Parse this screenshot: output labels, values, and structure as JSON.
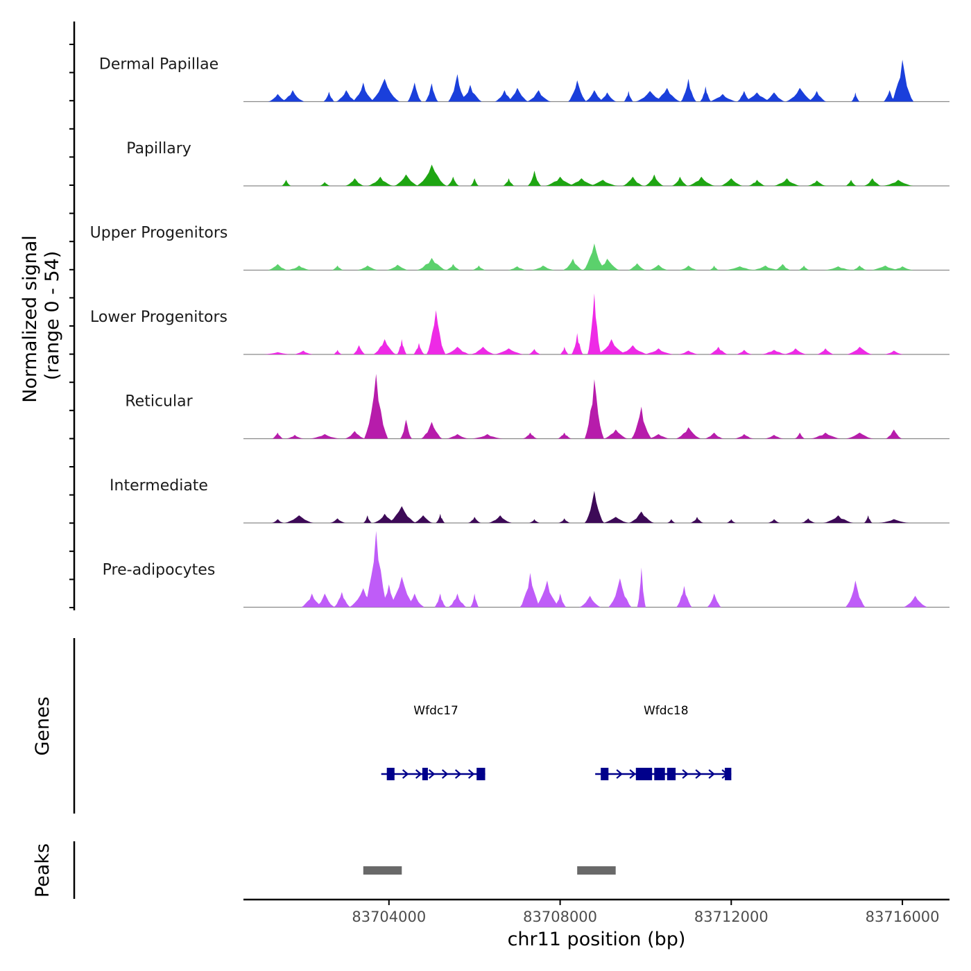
{
  "chart_data": {
    "type": "area",
    "ylabel": [
      "Normalized signal",
      "(range 0 - 54)"
    ],
    "ylim": [
      0,
      54
    ],
    "xlabel": "chr11 position (bp)",
    "xlim": [
      83700600,
      83717100
    ],
    "x_ticks": [
      83704000,
      83708000,
      83712000,
      83716000
    ],
    "x_tick_labels": [
      "83704000",
      "83708000",
      "83712000",
      "83716000"
    ],
    "tracks": [
      {
        "name": "Dermal Papillae",
        "color": "#1a3fdb",
        "peaks": [
          {
            "x": 83701400,
            "h": 0.1
          },
          {
            "x": 83701750,
            "h": 0.15
          },
          {
            "x": 83702600,
            "h": 0.13
          },
          {
            "x": 83703000,
            "h": 0.15
          },
          {
            "x": 83703400,
            "h": 0.25
          },
          {
            "x": 83703900,
            "h": 0.3
          },
          {
            "x": 83704600,
            "h": 0.25
          },
          {
            "x": 83705000,
            "h": 0.24
          },
          {
            "x": 83705600,
            "h": 0.36
          },
          {
            "x": 83705900,
            "h": 0.22
          },
          {
            "x": 83706700,
            "h": 0.15
          },
          {
            "x": 83707000,
            "h": 0.18
          },
          {
            "x": 83707500,
            "h": 0.15
          },
          {
            "x": 83708400,
            "h": 0.28
          },
          {
            "x": 83708800,
            "h": 0.15
          },
          {
            "x": 83709100,
            "h": 0.12
          },
          {
            "x": 83709600,
            "h": 0.14
          },
          {
            "x": 83710100,
            "h": 0.14
          },
          {
            "x": 83710500,
            "h": 0.18
          },
          {
            "x": 83711000,
            "h": 0.3
          },
          {
            "x": 83711400,
            "h": 0.2
          },
          {
            "x": 83711800,
            "h": 0.1
          },
          {
            "x": 83712300,
            "h": 0.14
          },
          {
            "x": 83712600,
            "h": 0.12
          },
          {
            "x": 83713000,
            "h": 0.12
          },
          {
            "x": 83713600,
            "h": 0.18
          },
          {
            "x": 83714000,
            "h": 0.14
          },
          {
            "x": 83714900,
            "h": 0.12
          },
          {
            "x": 83715700,
            "h": 0.15
          },
          {
            "x": 83716000,
            "h": 0.55
          }
        ]
      },
      {
        "name": "Papillary",
        "color": "#1ea512",
        "peaks": [
          {
            "x": 83701600,
            "h": 0.08
          },
          {
            "x": 83702500,
            "h": 0.05
          },
          {
            "x": 83703200,
            "h": 0.1
          },
          {
            "x": 83703800,
            "h": 0.12
          },
          {
            "x": 83704400,
            "h": 0.15
          },
          {
            "x": 83705000,
            "h": 0.28
          },
          {
            "x": 83705500,
            "h": 0.12
          },
          {
            "x": 83706000,
            "h": 0.1
          },
          {
            "x": 83706800,
            "h": 0.1
          },
          {
            "x": 83707400,
            "h": 0.2
          },
          {
            "x": 83708000,
            "h": 0.12
          },
          {
            "x": 83708500,
            "h": 0.1
          },
          {
            "x": 83709000,
            "h": 0.08
          },
          {
            "x": 83709700,
            "h": 0.12
          },
          {
            "x": 83710200,
            "h": 0.15
          },
          {
            "x": 83710800,
            "h": 0.12
          },
          {
            "x": 83711300,
            "h": 0.12
          },
          {
            "x": 83712000,
            "h": 0.1
          },
          {
            "x": 83712600,
            "h": 0.08
          },
          {
            "x": 83713300,
            "h": 0.1
          },
          {
            "x": 83714000,
            "h": 0.07
          },
          {
            "x": 83714800,
            "h": 0.08
          },
          {
            "x": 83715300,
            "h": 0.1
          },
          {
            "x": 83715900,
            "h": 0.08
          }
        ]
      },
      {
        "name": "Upper Progenitors",
        "color": "#5bd16c",
        "peaks": [
          {
            "x": 83701400,
            "h": 0.08
          },
          {
            "x": 83701900,
            "h": 0.06
          },
          {
            "x": 83702800,
            "h": 0.06
          },
          {
            "x": 83703500,
            "h": 0.06
          },
          {
            "x": 83704200,
            "h": 0.07
          },
          {
            "x": 83705000,
            "h": 0.16
          },
          {
            "x": 83705500,
            "h": 0.08
          },
          {
            "x": 83706100,
            "h": 0.06
          },
          {
            "x": 83707000,
            "h": 0.05
          },
          {
            "x": 83707600,
            "h": 0.06
          },
          {
            "x": 83708300,
            "h": 0.15
          },
          {
            "x": 83708800,
            "h": 0.35
          },
          {
            "x": 83709100,
            "h": 0.15
          },
          {
            "x": 83709800,
            "h": 0.09
          },
          {
            "x": 83710300,
            "h": 0.07
          },
          {
            "x": 83711000,
            "h": 0.06
          },
          {
            "x": 83711600,
            "h": 0.06
          },
          {
            "x": 83712200,
            "h": 0.05
          },
          {
            "x": 83712800,
            "h": 0.06
          },
          {
            "x": 83713200,
            "h": 0.08
          },
          {
            "x": 83713700,
            "h": 0.06
          },
          {
            "x": 83714500,
            "h": 0.05
          },
          {
            "x": 83715000,
            "h": 0.06
          },
          {
            "x": 83715600,
            "h": 0.06
          },
          {
            "x": 83716000,
            "h": 0.05
          }
        ]
      },
      {
        "name": "Lower Progenitors",
        "color": "#ee2ae6",
        "peaks": [
          {
            "x": 83701400,
            "h": 0.03
          },
          {
            "x": 83702000,
            "h": 0.05
          },
          {
            "x": 83702800,
            "h": 0.06
          },
          {
            "x": 83703300,
            "h": 0.12
          },
          {
            "x": 83703900,
            "h": 0.2
          },
          {
            "x": 83704300,
            "h": 0.2
          },
          {
            "x": 83704700,
            "h": 0.15
          },
          {
            "x": 83705100,
            "h": 0.58
          },
          {
            "x": 83705600,
            "h": 0.1
          },
          {
            "x": 83706200,
            "h": 0.1
          },
          {
            "x": 83706800,
            "h": 0.08
          },
          {
            "x": 83707400,
            "h": 0.07
          },
          {
            "x": 83708100,
            "h": 0.1
          },
          {
            "x": 83708400,
            "h": 0.28
          },
          {
            "x": 83708800,
            "h": 0.8
          },
          {
            "x": 83709200,
            "h": 0.2
          },
          {
            "x": 83709700,
            "h": 0.12
          },
          {
            "x": 83710300,
            "h": 0.08
          },
          {
            "x": 83711000,
            "h": 0.05
          },
          {
            "x": 83711700,
            "h": 0.1
          },
          {
            "x": 83712300,
            "h": 0.06
          },
          {
            "x": 83713000,
            "h": 0.06
          },
          {
            "x": 83713500,
            "h": 0.08
          },
          {
            "x": 83714200,
            "h": 0.08
          },
          {
            "x": 83715000,
            "h": 0.1
          },
          {
            "x": 83715800,
            "h": 0.05
          }
        ]
      },
      {
        "name": "Reticular",
        "color": "#b71cab",
        "peaks": [
          {
            "x": 83701400,
            "h": 0.08
          },
          {
            "x": 83701800,
            "h": 0.05
          },
          {
            "x": 83702500,
            "h": 0.06
          },
          {
            "x": 83703200,
            "h": 0.1
          },
          {
            "x": 83703700,
            "h": 0.85
          },
          {
            "x": 83704400,
            "h": 0.25
          },
          {
            "x": 83705000,
            "h": 0.22
          },
          {
            "x": 83705600,
            "h": 0.06
          },
          {
            "x": 83706300,
            "h": 0.06
          },
          {
            "x": 83707300,
            "h": 0.08
          },
          {
            "x": 83708100,
            "h": 0.08
          },
          {
            "x": 83708800,
            "h": 0.78
          },
          {
            "x": 83709300,
            "h": 0.12
          },
          {
            "x": 83709900,
            "h": 0.42
          },
          {
            "x": 83710300,
            "h": 0.06
          },
          {
            "x": 83711000,
            "h": 0.15
          },
          {
            "x": 83711600,
            "h": 0.08
          },
          {
            "x": 83712300,
            "h": 0.06
          },
          {
            "x": 83713000,
            "h": 0.05
          },
          {
            "x": 83713600,
            "h": 0.08
          },
          {
            "x": 83714200,
            "h": 0.08
          },
          {
            "x": 83715000,
            "h": 0.08
          },
          {
            "x": 83715800,
            "h": 0.12
          }
        ]
      },
      {
        "name": "Intermediate",
        "color": "#3d0a57",
        "peaks": [
          {
            "x": 83701400,
            "h": 0.05
          },
          {
            "x": 83701900,
            "h": 0.1
          },
          {
            "x": 83702800,
            "h": 0.06
          },
          {
            "x": 83703500,
            "h": 0.1
          },
          {
            "x": 83703900,
            "h": 0.12
          },
          {
            "x": 83704300,
            "h": 0.22
          },
          {
            "x": 83704800,
            "h": 0.1
          },
          {
            "x": 83705200,
            "h": 0.12
          },
          {
            "x": 83706000,
            "h": 0.08
          },
          {
            "x": 83706600,
            "h": 0.1
          },
          {
            "x": 83707400,
            "h": 0.05
          },
          {
            "x": 83708100,
            "h": 0.06
          },
          {
            "x": 83708800,
            "h": 0.42
          },
          {
            "x": 83709300,
            "h": 0.08
          },
          {
            "x": 83709900,
            "h": 0.15
          },
          {
            "x": 83710600,
            "h": 0.05
          },
          {
            "x": 83711200,
            "h": 0.08
          },
          {
            "x": 83712000,
            "h": 0.05
          },
          {
            "x": 83713000,
            "h": 0.05
          },
          {
            "x": 83713800,
            "h": 0.06
          },
          {
            "x": 83714500,
            "h": 0.1
          },
          {
            "x": 83715200,
            "h": 0.1
          },
          {
            "x": 83715800,
            "h": 0.05
          }
        ]
      },
      {
        "name": "Pre-adipocytes",
        "color": "#bf5cf8",
        "peaks": [
          {
            "x": 83702200,
            "h": 0.18
          },
          {
            "x": 83702500,
            "h": 0.18
          },
          {
            "x": 83702900,
            "h": 0.2
          },
          {
            "x": 83703400,
            "h": 0.25
          },
          {
            "x": 83703700,
            "h": 1.0
          },
          {
            "x": 83704000,
            "h": 0.3
          },
          {
            "x": 83704300,
            "h": 0.4
          },
          {
            "x": 83704600,
            "h": 0.18
          },
          {
            "x": 83705200,
            "h": 0.18
          },
          {
            "x": 83705600,
            "h": 0.18
          },
          {
            "x": 83706000,
            "h": 0.18
          },
          {
            "x": 83707300,
            "h": 0.45
          },
          {
            "x": 83707700,
            "h": 0.35
          },
          {
            "x": 83708000,
            "h": 0.18
          },
          {
            "x": 83708700,
            "h": 0.15
          },
          {
            "x": 83709400,
            "h": 0.38
          },
          {
            "x": 83709900,
            "h": 0.52
          },
          {
            "x": 83710900,
            "h": 0.28
          },
          {
            "x": 83711600,
            "h": 0.18
          },
          {
            "x": 83714900,
            "h": 0.35
          },
          {
            "x": 83716300,
            "h": 0.15
          }
        ]
      }
    ],
    "genes": [
      {
        "name": "Wfdc17",
        "strand": "+",
        "start": 83703950,
        "end": 83706250,
        "exons": [
          [
            83703950,
            83704130
          ],
          [
            83704780,
            83704900
          ],
          [
            83706050,
            83706250
          ]
        ]
      },
      {
        "name": "Wfdc18",
        "strand": "+",
        "start": 83708950,
        "end": 83712000,
        "exons": [
          [
            83708950,
            83709130
          ],
          [
            83709770,
            83710150
          ],
          [
            83710200,
            83710450
          ],
          [
            83710500,
            83710700
          ],
          [
            83711850,
            83712000
          ]
        ]
      }
    ],
    "peaks_track": {
      "label": "Peaks",
      "color": "#696969",
      "regions": [
        [
          83703400,
          83704300
        ],
        [
          83708400,
          83709300
        ]
      ]
    },
    "genes_label": "Genes"
  }
}
